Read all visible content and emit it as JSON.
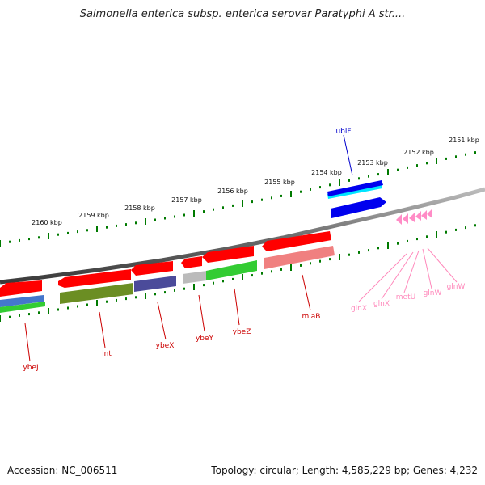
{
  "title": "Salmonella enterica subsp. enterica serovar Paratyphi A str....",
  "accession": "Accession: NC_006511",
  "summary": "Topology: circular; Length: 4,585,229 bp; Genes: 4,232",
  "colors": {
    "backbone": "#808080",
    "tick": "#007a00",
    "gene_red": "#ff0000",
    "gene_blue": "#0000ee",
    "gene_cyan": "#00e5ff",
    "gene_pink": "#ff8cc6",
    "gene_olive": "#6b8e23",
    "gene_purple": "#4b4b9a",
    "gene_green": "#33cc33",
    "gene_grey": "#bbbbbb",
    "gene_salmon": "#f08080",
    "label_red": "#cc0000",
    "label_blue": "#0000cc",
    "label_pink": "#ff88bb"
  },
  "ruler_labels": [
    "2151 kbp",
    "2152 kbp",
    "2153 kbp",
    "2154 kbp",
    "2155 kbp",
    "2156 kbp",
    "2157 kbp",
    "2158 kbp",
    "2159 kbp",
    "2160 kbp"
  ],
  "gene_labels": {
    "ubiF": "ubiF",
    "ybeJ": "ybeJ",
    "lnt": "lnt",
    "ybeX": "ybeX",
    "ybeY": "ybeY",
    "ybeZ": "ybeZ",
    "miaB": "miaB",
    "glnX_1": "glnX",
    "glnX_2": "glnX",
    "metU": "metU",
    "glnW_1": "glnW",
    "glnW_2": "glnW"
  }
}
